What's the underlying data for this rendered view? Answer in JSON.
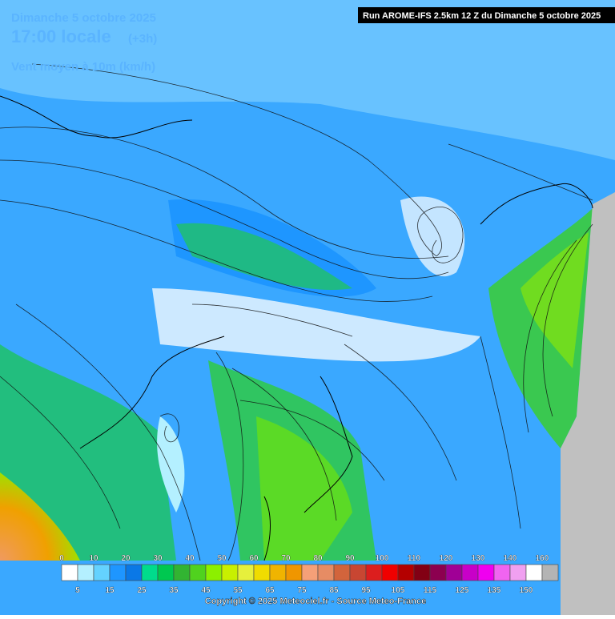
{
  "header": {
    "date": "Dimanche 5 octobre 2025",
    "time": "17:00 locale",
    "offset": "(+3h)",
    "field": "Vent moyen à 10m (km/h)",
    "run": "Run AROME-IFS 2.5km 12 Z du Dimanche 5 octobre 2025"
  },
  "legend": {
    "colors": [
      "#ffffff",
      "#b4f0ff",
      "#64d2ff",
      "#1e96ff",
      "#0a78e6",
      "#00dc8c",
      "#00c850",
      "#32b432",
      "#50d21e",
      "#8cf000",
      "#c8f000",
      "#e6f03c",
      "#f0dc00",
      "#f0b400",
      "#f09600",
      "#f5a078",
      "#e68c64",
      "#d2643c",
      "#c84632",
      "#dc1e1e",
      "#f00000",
      "#b40000",
      "#820014",
      "#8c0050",
      "#a00096",
      "#c800c8",
      "#f000f0",
      "#f064f0",
      "#f0a0f0",
      "#ffffff",
      "#b4b4b4"
    ],
    "top_labels": [
      "0",
      "10",
      "20",
      "30",
      "40",
      "50",
      "60",
      "70",
      "80",
      "90",
      "100",
      "110",
      "120",
      "130",
      "140",
      "160"
    ],
    "bottom_labels": [
      "5",
      "15",
      "25",
      "35",
      "45",
      "55",
      "65",
      "75",
      "85",
      "95",
      "105",
      "115",
      "125",
      "135",
      "150"
    ]
  },
  "footer": {
    "copyright": "Copyright © 2025 Meteociel.fr - Source Meteo-France"
  }
}
